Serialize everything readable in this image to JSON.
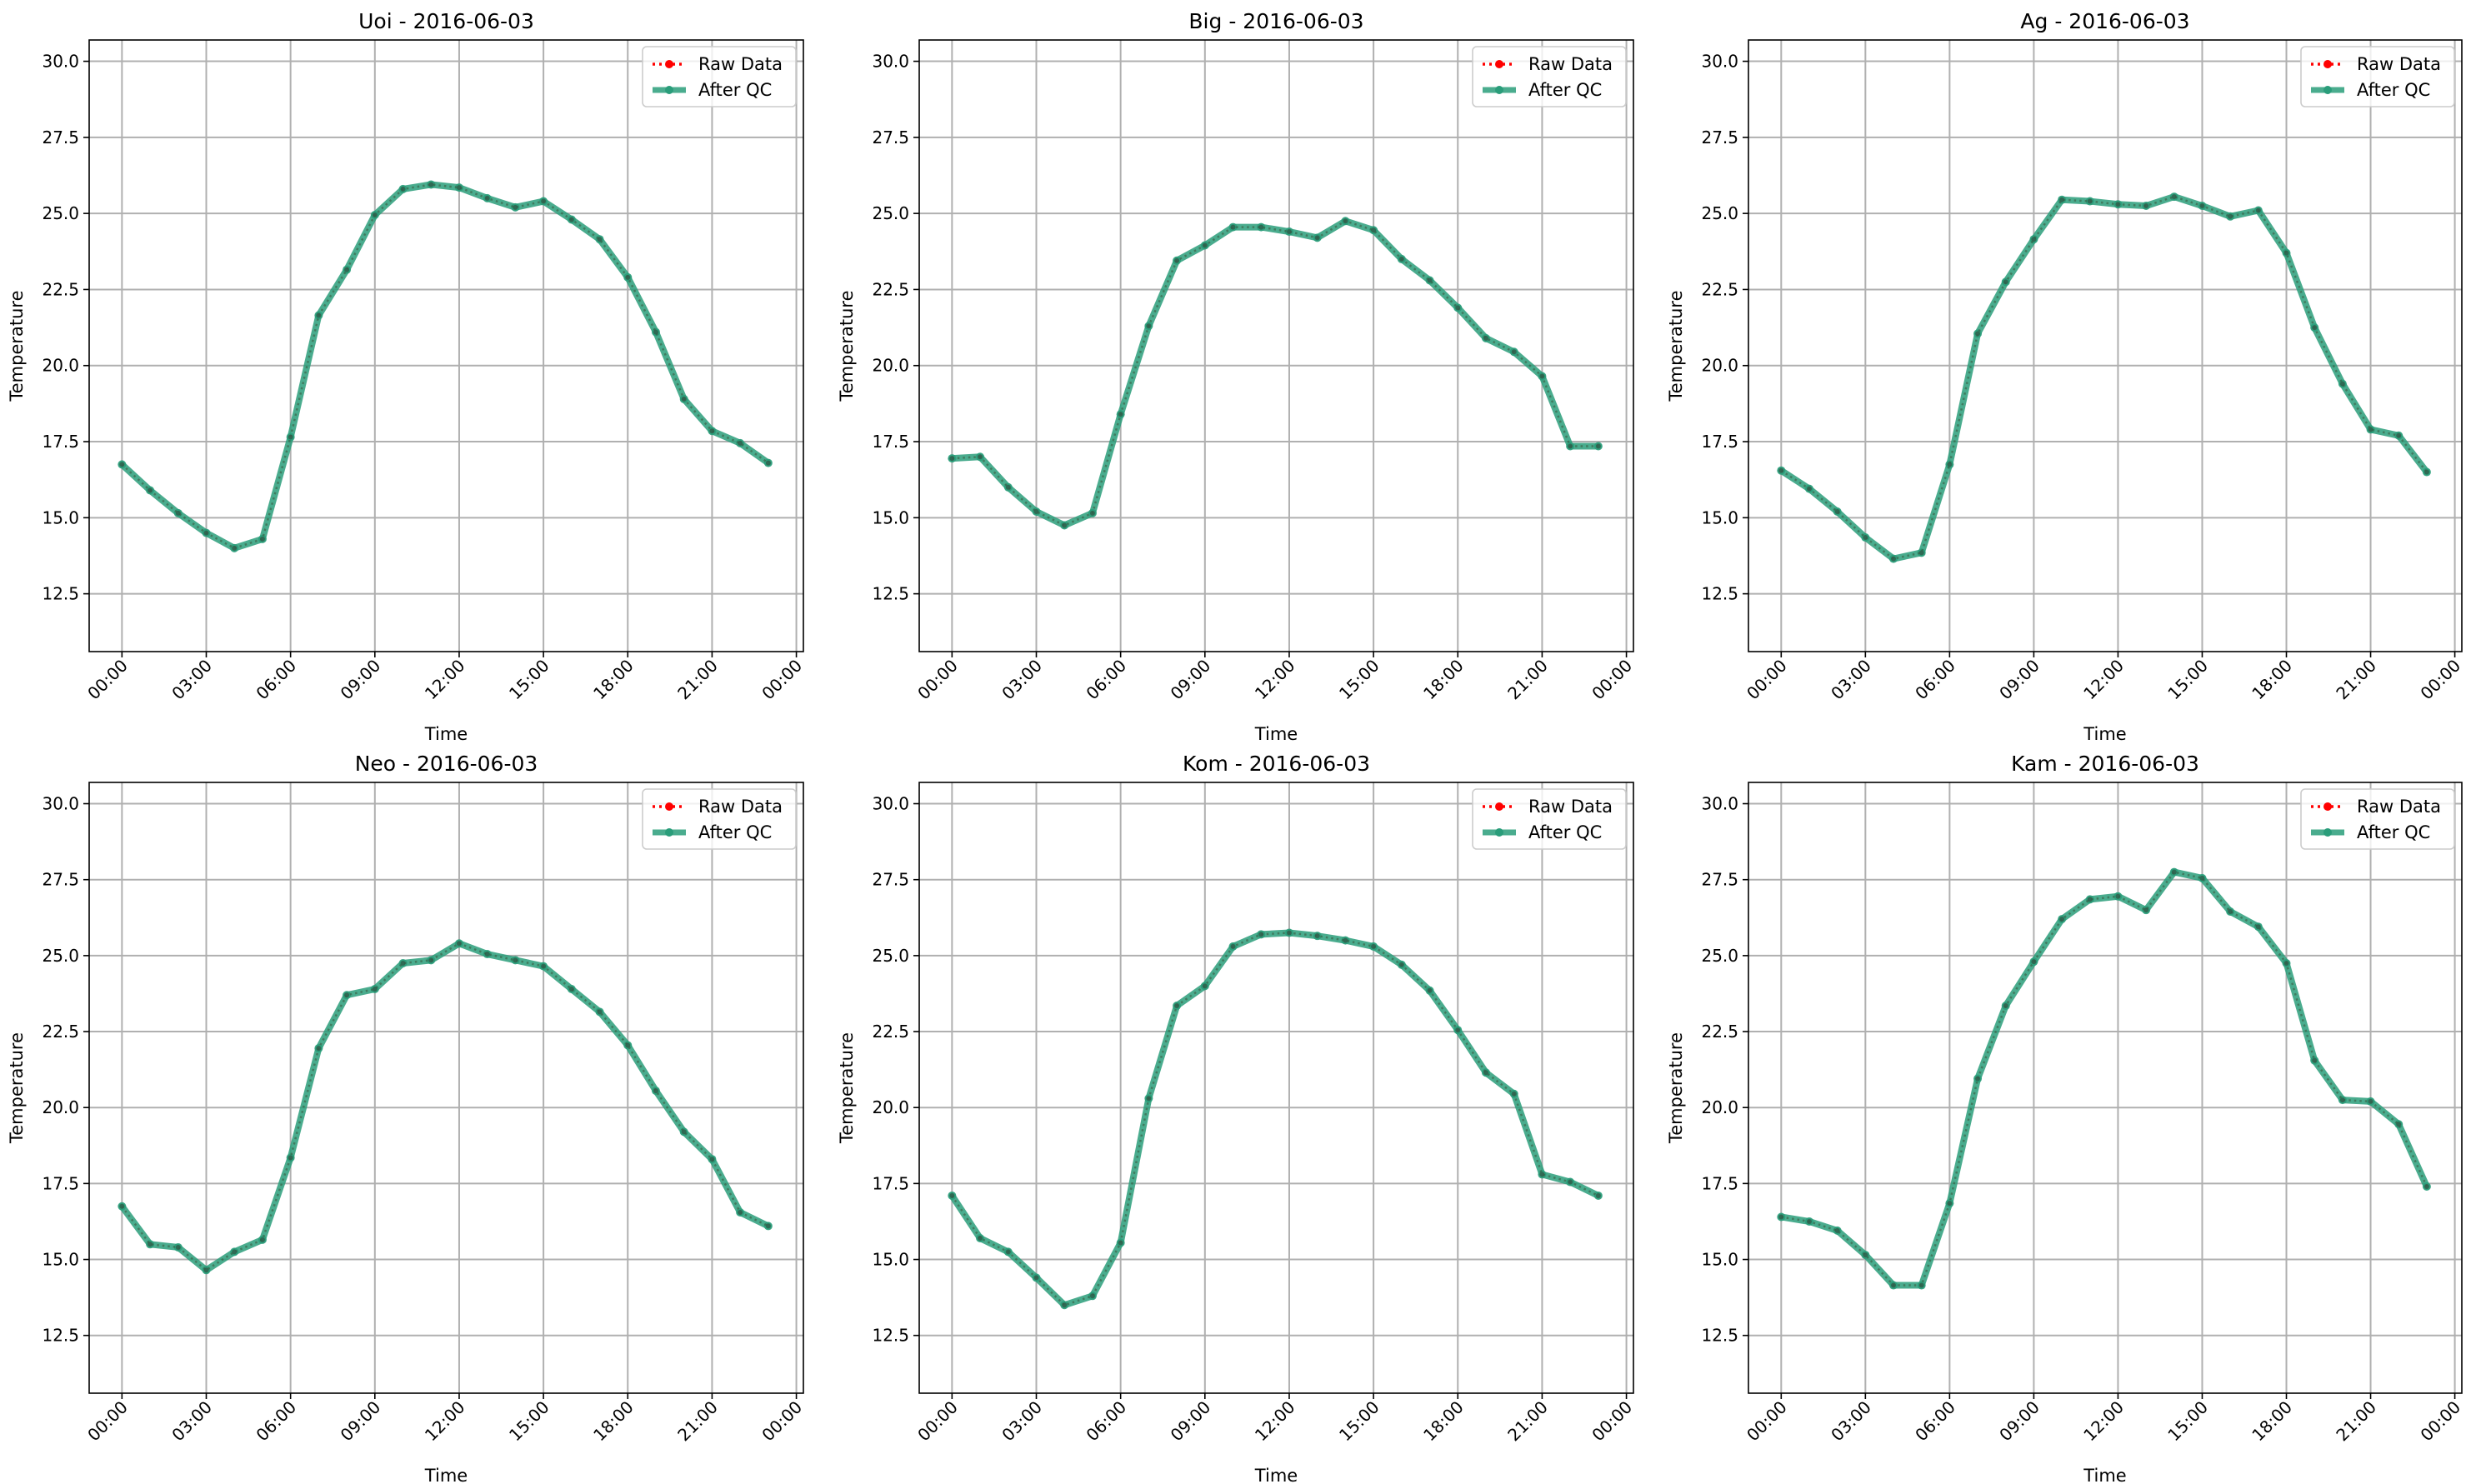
{
  "chart_data": [
    {
      "type": "line",
      "title": "Uoi - 2016-06-03",
      "xlabel": "Time",
      "ylabel": "Temperature",
      "x": [
        "00:00",
        "01:00",
        "02:00",
        "03:00",
        "04:00",
        "05:00",
        "06:00",
        "07:00",
        "08:00",
        "09:00",
        "10:00",
        "11:00",
        "12:00",
        "13:00",
        "14:00",
        "15:00",
        "16:00",
        "17:00",
        "18:00",
        "19:00",
        "20:00",
        "21:00",
        "22:00",
        "23:00"
      ],
      "xticks": [
        "00:00",
        "03:00",
        "06:00",
        "09:00",
        "12:00",
        "15:00",
        "18:00",
        "21:00",
        "00:00"
      ],
      "yticks": [
        "12.5",
        "15.0",
        "17.5",
        "20.0",
        "22.5",
        "25.0",
        "27.5",
        "30.0"
      ],
      "ylim": [
        10.6,
        30.7
      ],
      "grid": true,
      "legend": "upper right",
      "series": [
        {
          "name": "Raw Data",
          "color": "#ff0000",
          "values": [
            16.75,
            15.9,
            15.15,
            14.5,
            14.0,
            14.3,
            17.65,
            21.65,
            23.15,
            24.95,
            25.8,
            25.95,
            25.85,
            25.5,
            25.2,
            25.4,
            24.8,
            24.15,
            22.9,
            21.1,
            18.9,
            17.85,
            17.45,
            16.8
          ]
        },
        {
          "name": "After QC",
          "color": "#2a9d7a",
          "values": [
            16.75,
            15.9,
            15.15,
            14.5,
            14.0,
            14.3,
            17.65,
            21.65,
            23.15,
            24.95,
            25.8,
            25.95,
            25.85,
            25.5,
            25.2,
            25.4,
            24.8,
            24.15,
            22.9,
            21.1,
            18.9,
            17.85,
            17.45,
            16.8
          ]
        }
      ]
    },
    {
      "type": "line",
      "title": "Big - 2016-06-03",
      "xlabel": "Time",
      "ylabel": "Temperature",
      "x": [
        "00:00",
        "01:00",
        "02:00",
        "03:00",
        "04:00",
        "05:00",
        "06:00",
        "07:00",
        "08:00",
        "09:00",
        "10:00",
        "11:00",
        "12:00",
        "13:00",
        "14:00",
        "15:00",
        "16:00",
        "17:00",
        "18:00",
        "19:00",
        "20:00",
        "21:00",
        "22:00",
        "23:00"
      ],
      "xticks": [
        "00:00",
        "03:00",
        "06:00",
        "09:00",
        "12:00",
        "15:00",
        "18:00",
        "21:00",
        "00:00"
      ],
      "yticks": [
        "12.5",
        "15.0",
        "17.5",
        "20.0",
        "22.5",
        "25.0",
        "27.5",
        "30.0"
      ],
      "ylim": [
        10.6,
        30.7
      ],
      "grid": true,
      "legend": "upper right",
      "series": [
        {
          "name": "Raw Data",
          "color": "#ff0000",
          "values": [
            16.95,
            17.0,
            16.0,
            15.2,
            14.75,
            15.15,
            18.4,
            21.3,
            23.45,
            23.95,
            24.55,
            24.55,
            24.4,
            24.2,
            24.75,
            24.45,
            23.5,
            22.8,
            21.9,
            20.9,
            20.45,
            19.65,
            17.35,
            17.35
          ]
        },
        {
          "name": "After QC",
          "color": "#2a9d7a",
          "values": [
            16.95,
            17.0,
            16.0,
            15.2,
            14.75,
            15.15,
            18.4,
            21.3,
            23.45,
            23.95,
            24.55,
            24.55,
            24.4,
            24.2,
            24.75,
            24.45,
            23.5,
            22.8,
            21.9,
            20.9,
            20.45,
            19.65,
            17.35,
            17.35
          ]
        }
      ]
    },
    {
      "type": "line",
      "title": "Ag - 2016-06-03",
      "xlabel": "Time",
      "ylabel": "Temperature",
      "x": [
        "00:00",
        "01:00",
        "02:00",
        "03:00",
        "04:00",
        "05:00",
        "06:00",
        "07:00",
        "08:00",
        "09:00",
        "10:00",
        "11:00",
        "12:00",
        "13:00",
        "14:00",
        "15:00",
        "16:00",
        "17:00",
        "18:00",
        "19:00",
        "20:00",
        "21:00",
        "22:00",
        "23:00"
      ],
      "xticks": [
        "00:00",
        "03:00",
        "06:00",
        "09:00",
        "12:00",
        "15:00",
        "18:00",
        "21:00",
        "00:00"
      ],
      "yticks": [
        "12.5",
        "15.0",
        "17.5",
        "20.0",
        "22.5",
        "25.0",
        "27.5",
        "30.0"
      ],
      "ylim": [
        10.6,
        30.7
      ],
      "grid": true,
      "legend": "upper right",
      "series": [
        {
          "name": "Raw Data",
          "color": "#ff0000",
          "values": [
            16.55,
            15.95,
            15.2,
            14.35,
            13.65,
            13.85,
            16.75,
            21.05,
            22.75,
            24.15,
            25.45,
            25.4,
            25.3,
            25.25,
            25.55,
            25.25,
            24.9,
            25.1,
            23.7,
            21.25,
            19.4,
            17.9,
            17.7,
            16.5
          ]
        },
        {
          "name": "After QC",
          "color": "#2a9d7a",
          "values": [
            16.55,
            15.95,
            15.2,
            14.35,
            13.65,
            13.85,
            16.75,
            21.05,
            22.75,
            24.15,
            25.45,
            25.4,
            25.3,
            25.25,
            25.55,
            25.25,
            24.9,
            25.1,
            23.7,
            21.25,
            19.4,
            17.9,
            17.7,
            16.5
          ]
        }
      ]
    },
    {
      "type": "line",
      "title": "Neo - 2016-06-03",
      "xlabel": "Time",
      "ylabel": "Temperature",
      "x": [
        "00:00",
        "01:00",
        "02:00",
        "03:00",
        "04:00",
        "05:00",
        "06:00",
        "07:00",
        "08:00",
        "09:00",
        "10:00",
        "11:00",
        "12:00",
        "13:00",
        "14:00",
        "15:00",
        "16:00",
        "17:00",
        "18:00",
        "19:00",
        "20:00",
        "21:00",
        "22:00",
        "23:00"
      ],
      "xticks": [
        "00:00",
        "03:00",
        "06:00",
        "09:00",
        "12:00",
        "15:00",
        "18:00",
        "21:00",
        "00:00"
      ],
      "yticks": [
        "12.5",
        "15.0",
        "17.5",
        "20.0",
        "22.5",
        "25.0",
        "27.5",
        "30.0"
      ],
      "ylim": [
        10.6,
        30.7
      ],
      "grid": true,
      "legend": "upper right",
      "series": [
        {
          "name": "Raw Data",
          "color": "#ff0000",
          "values": [
            16.75,
            15.5,
            15.4,
            14.65,
            15.25,
            15.65,
            18.35,
            21.95,
            23.7,
            23.9,
            24.75,
            24.85,
            25.4,
            25.05,
            24.85,
            24.65,
            23.9,
            23.15,
            22.05,
            20.55,
            19.2,
            18.3,
            16.55,
            16.1
          ]
        },
        {
          "name": "After QC",
          "color": "#2a9d7a",
          "values": [
            16.75,
            15.5,
            15.4,
            14.65,
            15.25,
            15.65,
            18.35,
            21.95,
            23.7,
            23.9,
            24.75,
            24.85,
            25.4,
            25.05,
            24.85,
            24.65,
            23.9,
            23.15,
            22.05,
            20.55,
            19.2,
            18.3,
            16.55,
            16.1
          ]
        }
      ]
    },
    {
      "type": "line",
      "title": "Kom - 2016-06-03",
      "xlabel": "Time",
      "ylabel": "Temperature",
      "x": [
        "00:00",
        "01:00",
        "02:00",
        "03:00",
        "04:00",
        "05:00",
        "06:00",
        "07:00",
        "08:00",
        "09:00",
        "10:00",
        "11:00",
        "12:00",
        "13:00",
        "14:00",
        "15:00",
        "16:00",
        "17:00",
        "18:00",
        "19:00",
        "20:00",
        "21:00",
        "22:00",
        "23:00"
      ],
      "xticks": [
        "00:00",
        "03:00",
        "06:00",
        "09:00",
        "12:00",
        "15:00",
        "18:00",
        "21:00",
        "00:00"
      ],
      "yticks": [
        "12.5",
        "15.0",
        "17.5",
        "20.0",
        "22.5",
        "25.0",
        "27.5",
        "30.0"
      ],
      "ylim": [
        10.6,
        30.7
      ],
      "grid": true,
      "legend": "upper right",
      "series": [
        {
          "name": "Raw Data",
          "color": "#ff0000",
          "values": [
            17.1,
            15.7,
            15.25,
            14.4,
            13.5,
            13.8,
            15.55,
            20.3,
            23.35,
            24.0,
            25.3,
            25.7,
            25.75,
            25.65,
            25.5,
            25.3,
            24.7,
            23.85,
            22.55,
            21.15,
            20.45,
            17.8,
            17.55,
            17.1
          ]
        },
        {
          "name": "After QC",
          "color": "#2a9d7a",
          "values": [
            17.1,
            15.7,
            15.25,
            14.4,
            13.5,
            13.8,
            15.55,
            20.3,
            23.35,
            24.0,
            25.3,
            25.7,
            25.75,
            25.65,
            25.5,
            25.3,
            24.7,
            23.85,
            22.55,
            21.15,
            20.45,
            17.8,
            17.55,
            17.1
          ]
        }
      ]
    },
    {
      "type": "line",
      "title": "Kam - 2016-06-03",
      "xlabel": "Time",
      "ylabel": "Temperature",
      "x": [
        "00:00",
        "01:00",
        "02:00",
        "03:00",
        "04:00",
        "05:00",
        "06:00",
        "07:00",
        "08:00",
        "09:00",
        "10:00",
        "11:00",
        "12:00",
        "13:00",
        "14:00",
        "15:00",
        "16:00",
        "17:00",
        "18:00",
        "19:00",
        "20:00",
        "21:00",
        "22:00",
        "23:00"
      ],
      "xticks": [
        "00:00",
        "03:00",
        "06:00",
        "09:00",
        "12:00",
        "15:00",
        "18:00",
        "21:00",
        "00:00"
      ],
      "yticks": [
        "12.5",
        "15.0",
        "17.5",
        "20.0",
        "22.5",
        "25.0",
        "27.5",
        "30.0"
      ],
      "ylim": [
        10.6,
        30.7
      ],
      "grid": true,
      "legend": "upper right",
      "series": [
        {
          "name": "Raw Data",
          "color": "#ff0000",
          "values": [
            16.4,
            16.25,
            15.95,
            15.15,
            14.15,
            14.15,
            16.85,
            20.95,
            23.35,
            24.8,
            26.2,
            26.85,
            26.95,
            26.5,
            27.75,
            27.55,
            26.45,
            25.95,
            24.75,
            21.55,
            20.25,
            20.2,
            19.45,
            17.4
          ]
        },
        {
          "name": "After QC",
          "color": "#2a9d7a",
          "values": [
            16.4,
            16.25,
            15.95,
            15.15,
            14.15,
            14.15,
            16.85,
            20.95,
            23.35,
            24.8,
            26.2,
            26.85,
            26.95,
            26.5,
            27.75,
            27.55,
            26.45,
            25.95,
            24.75,
            21.55,
            20.25,
            20.2,
            19.45,
            17.4
          ]
        }
      ]
    }
  ]
}
